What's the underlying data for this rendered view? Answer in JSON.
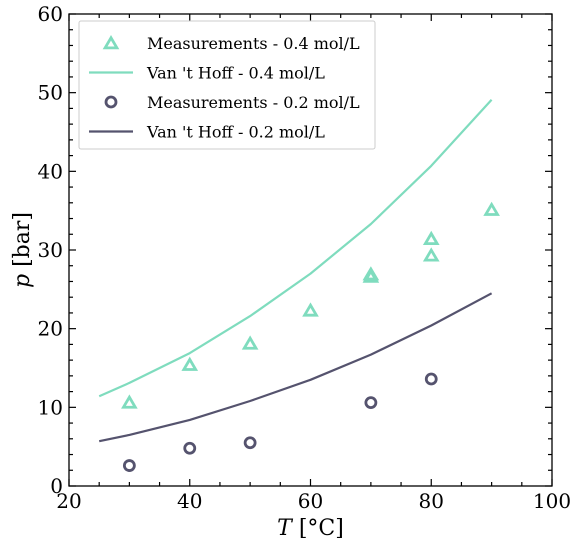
{
  "chart_data": {
    "type": "line+scatter",
    "title": "",
    "xlabel_var": "T",
    "xlabel_unit": " [°C]",
    "ylabel_var": "p",
    "ylabel_unit": " [bar]",
    "xlim": [
      20,
      100
    ],
    "ylim": [
      0,
      60
    ],
    "xticks": [
      20,
      40,
      60,
      80,
      100
    ],
    "yticks": [
      0,
      10,
      20,
      30,
      40,
      50,
      60
    ],
    "grid": false,
    "legend_position": "top-left",
    "series": [
      {
        "name": "Measurements - 0.4 mol/L",
        "kind": "scatter",
        "marker": "triangle",
        "color": "#7fdcbe",
        "x": [
          30,
          40,
          50,
          60,
          70,
          70,
          80,
          80,
          90
        ],
        "y": [
          10.5,
          15.3,
          18.0,
          22.2,
          26.5,
          26.8,
          29.2,
          31.3,
          35.0
        ]
      },
      {
        "name": "Van 't Hoff - 0.4 mol/L",
        "kind": "line",
        "color": "#7fdcbe",
        "x": [
          25,
          30,
          40,
          50,
          60,
          70,
          80,
          90
        ],
        "y": [
          11.4,
          13.1,
          16.9,
          21.6,
          27.0,
          33.3,
          40.7,
          49.1
        ]
      },
      {
        "name": "Measurements - 0.2 mol/L",
        "kind": "scatter",
        "marker": "circle",
        "color": "#55536e",
        "x": [
          30,
          40,
          50,
          70,
          80
        ],
        "y": [
          2.6,
          4.8,
          5.5,
          10.6,
          13.6
        ]
      },
      {
        "name": "Van 't Hoff - 0.2 mol/L",
        "kind": "line",
        "color": "#55536e",
        "x": [
          25,
          30,
          40,
          50,
          60,
          70,
          80,
          90
        ],
        "y": [
          5.7,
          6.5,
          8.4,
          10.8,
          13.5,
          16.7,
          20.4,
          24.5
        ]
      }
    ]
  }
}
